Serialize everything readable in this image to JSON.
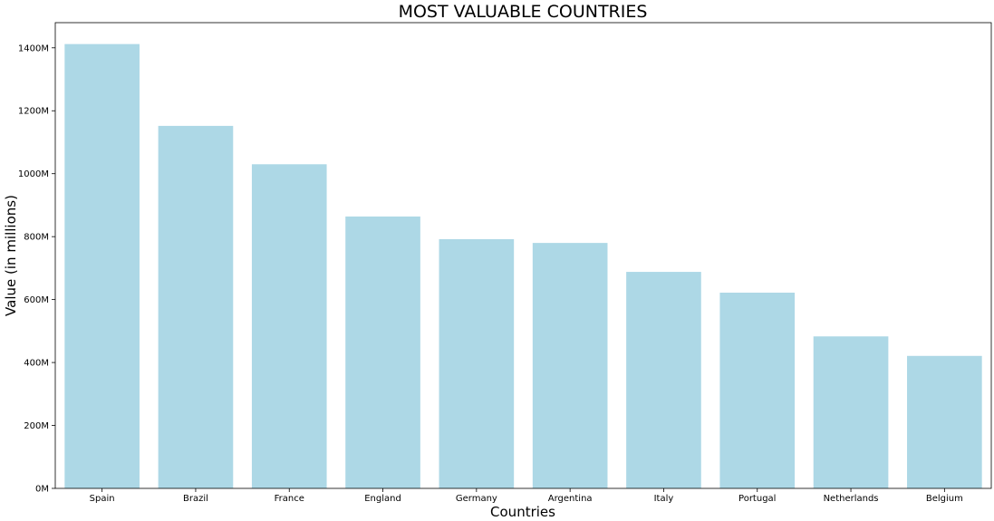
{
  "chart_data": {
    "type": "bar",
    "title": "MOST VALUABLE COUNTRIES",
    "xlabel": "Countries",
    "ylabel": "Value (in millions)",
    "categories": [
      "Spain",
      "Brazil",
      "France",
      "England",
      "Germany",
      "Argentina",
      "Italy",
      "Portugal",
      "Netherlands",
      "Belgium"
    ],
    "values": [
      1412,
      1152,
      1030,
      864,
      792,
      780,
      688,
      622,
      483,
      421
    ],
    "ylim": [
      0,
      1480
    ],
    "yticks": [
      0,
      200,
      400,
      600,
      800,
      1000,
      1200,
      1400
    ],
    "ytick_labels": [
      "0M",
      "200M",
      "400M",
      "600M",
      "800M",
      "1000M",
      "1200M",
      "1400M"
    ],
    "bar_color": "#add8e6",
    "grid": false,
    "legend": "none"
  }
}
